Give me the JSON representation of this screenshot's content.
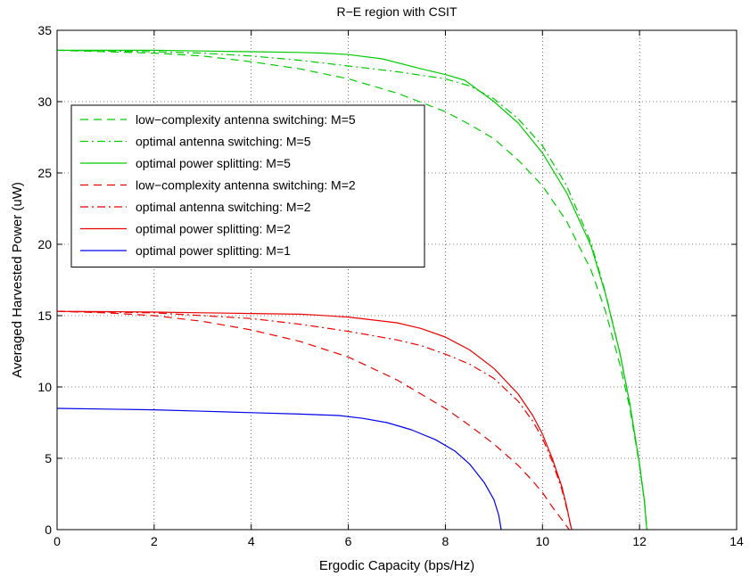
{
  "chart_data": {
    "type": "line",
    "title": "R−E region with CSIT",
    "xlabel": "Ergodic Capacity (bps/Hz)",
    "ylabel": "Averaged Harvested Power (uW)",
    "xlim": [
      0,
      14
    ],
    "ylim": [
      0,
      35
    ],
    "xticks": [
      "0",
      "2",
      "4",
      "6",
      "8",
      "10",
      "12",
      "14"
    ],
    "yticks": [
      "0",
      "5",
      "10",
      "15",
      "20",
      "25",
      "30",
      "35"
    ],
    "grid": true,
    "legend_position": "upper-left",
    "series": [
      {
        "name": "low−complexity antenna switching: M=5",
        "color": "#00cc00",
        "style": "dashed",
        "x": [
          0,
          1,
          2,
          3,
          4,
          5,
          6,
          7,
          8,
          8.5,
          9,
          9.5,
          10,
          10.5,
          11,
          11.3,
          11.6,
          11.8,
          12.0,
          12.1,
          12.15
        ],
        "y": [
          33.6,
          33.5,
          33.4,
          33.2,
          32.8,
          32.3,
          31.6,
          30.6,
          29.3,
          28.4,
          27.4,
          25.9,
          24.1,
          21.6,
          18.2,
          15.3,
          11.5,
          8.5,
          4.5,
          2.0,
          0
        ]
      },
      {
        "name": "optimal antenna switching: M=5",
        "color": "#00cc00",
        "style": "dashdot",
        "x": [
          0,
          1,
          2,
          3,
          4,
          5,
          6,
          7,
          8,
          8.5,
          9,
          9.5,
          10,
          10.5,
          11,
          11.3,
          11.6,
          11.8,
          12.0,
          12.1,
          12.15
        ],
        "y": [
          33.6,
          33.55,
          33.5,
          33.4,
          33.2,
          32.9,
          32.5,
          32.1,
          31.6,
          31.1,
          30.2,
          28.8,
          26.9,
          24.1,
          20.1,
          16.6,
          12.3,
          8.8,
          4.6,
          2.0,
          0
        ]
      },
      {
        "name": "optimal power splitting: M=5",
        "color": "#00cc00",
        "style": "solid",
        "x": [
          0,
          1,
          2,
          3,
          4,
          5,
          5.5,
          6,
          6.7,
          7.5,
          8.0,
          8.4,
          9.0,
          9.5,
          10.0,
          10.5,
          11.0,
          11.3,
          11.6,
          11.8,
          12.0,
          12.1,
          12.15
        ],
        "y": [
          33.6,
          33.6,
          33.6,
          33.55,
          33.5,
          33.45,
          33.4,
          33.3,
          33.0,
          32.3,
          31.9,
          31.5,
          30.0,
          28.5,
          26.4,
          23.6,
          19.9,
          16.5,
          12.3,
          8.8,
          4.6,
          2.0,
          0
        ]
      },
      {
        "name": "low−complexity antenna switching: M=2",
        "color": "#ee0000",
        "style": "dashed",
        "x": [
          0,
          1,
          2,
          3,
          4,
          5,
          6,
          7,
          8,
          8.5,
          9,
          9.5,
          9.8,
          10.0,
          10.2,
          10.4,
          10.55
        ],
        "y": [
          15.3,
          15.2,
          15.0,
          14.6,
          14.0,
          13.2,
          12.1,
          10.5,
          8.5,
          7.3,
          6.0,
          4.5,
          3.4,
          2.6,
          1.6,
          0.7,
          0
        ]
      },
      {
        "name": "optimal antenna switching: M=2",
        "color": "#ee0000",
        "style": "dashdot",
        "x": [
          0,
          1,
          2,
          3,
          4,
          5,
          6,
          7,
          7.5,
          8,
          8.5,
          9,
          9.5,
          9.8,
          10.0,
          10.2,
          10.4,
          10.5,
          10.6
        ],
        "y": [
          15.3,
          15.25,
          15.2,
          15.0,
          14.8,
          14.4,
          13.9,
          13.3,
          12.9,
          12.3,
          11.6,
          10.6,
          9.0,
          7.6,
          6.4,
          4.8,
          2.8,
          1.5,
          0
        ]
      },
      {
        "name": "optimal power splitting: M=2",
        "color": "#ee0000",
        "style": "solid",
        "x": [
          0,
          1,
          2,
          3,
          4,
          5,
          5.3,
          6,
          7,
          7.5,
          8,
          8.5,
          9,
          9.5,
          9.8,
          10.0,
          10.2,
          10.4,
          10.5,
          10.6
        ],
        "y": [
          15.3,
          15.28,
          15.25,
          15.2,
          15.15,
          15.1,
          15.05,
          14.9,
          14.5,
          14.1,
          13.5,
          12.6,
          11.3,
          9.5,
          8.0,
          6.7,
          5.0,
          3.0,
          1.6,
          0
        ]
      },
      {
        "name": "optimal power splitting: M=1",
        "color": "#0000ee",
        "style": "solid",
        "x": [
          0,
          1,
          2,
          3,
          4,
          5,
          5.8,
          6.3,
          6.8,
          7.3,
          7.8,
          8.2,
          8.5,
          8.8,
          9.0,
          9.1,
          9.15
        ],
        "y": [
          8.5,
          8.45,
          8.4,
          8.3,
          8.2,
          8.1,
          8.0,
          7.8,
          7.5,
          7.0,
          6.3,
          5.5,
          4.6,
          3.3,
          2.1,
          1.0,
          0
        ]
      }
    ]
  }
}
